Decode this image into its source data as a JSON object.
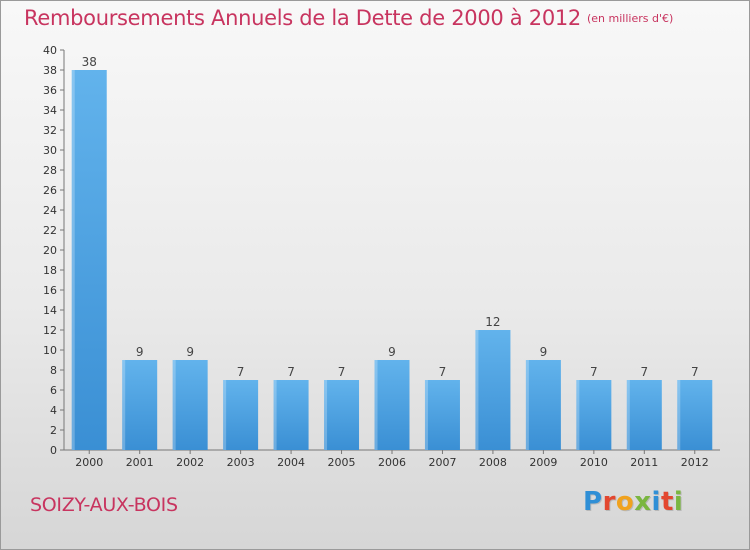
{
  "chart_data": {
    "type": "bar",
    "title": "Remboursements Annuels de la Dette de 2000 à 2012",
    "unit_note": "(en milliers d'€)",
    "categories": [
      "2000",
      "2001",
      "2002",
      "2003",
      "2004",
      "2005",
      "2006",
      "2007",
      "2008",
      "2009",
      "2010",
      "2011",
      "2012"
    ],
    "values": [
      38,
      9,
      9,
      7,
      7,
      7,
      9,
      7,
      12,
      9,
      7,
      7,
      7
    ],
    "ylim": [
      0,
      40
    ],
    "ytick_step": 2,
    "grid": false,
    "bar_color": "#3a8fd4",
    "bar_color_light": "#62b3ec"
  },
  "commune": "SOIZY-AUX-BOIS",
  "brand": {
    "letters": [
      "P",
      "r",
      "o",
      "x",
      "i",
      "t",
      "i"
    ],
    "colors": [
      "#2f8fd6",
      "#e3472f",
      "#f0a21e",
      "#7ab640",
      "#2f8fd6",
      "#e3472f",
      "#7ab640"
    ]
  }
}
